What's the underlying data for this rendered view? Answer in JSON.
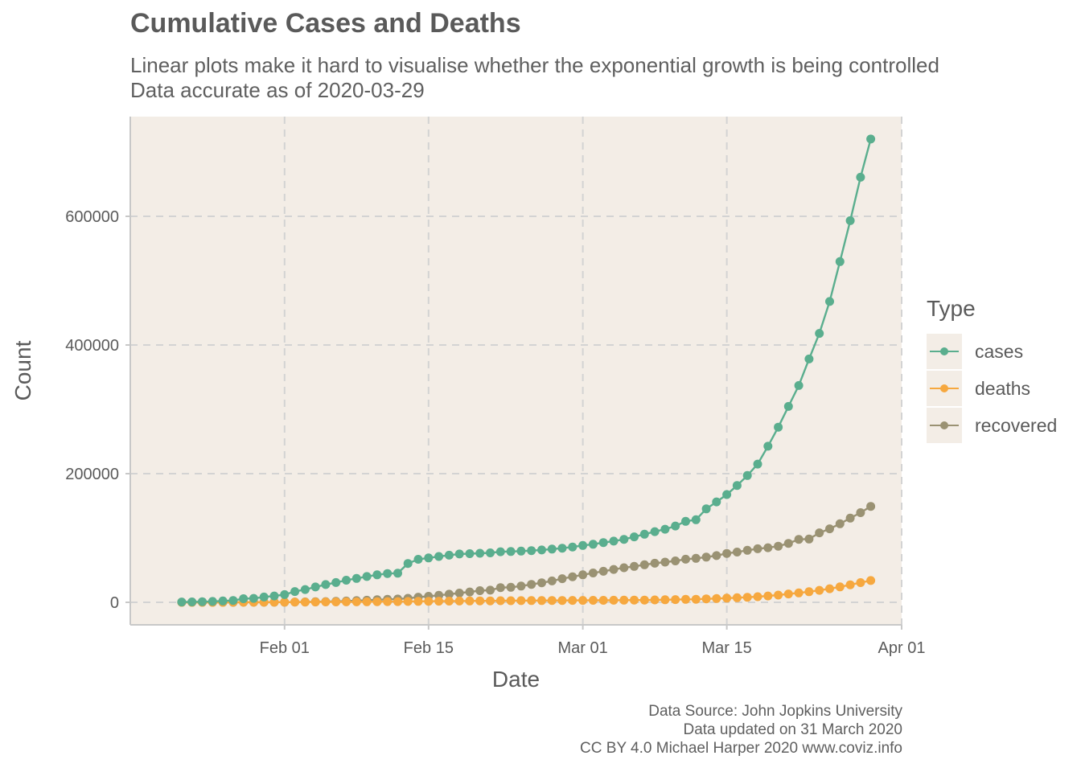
{
  "title": "Cumulative Cases and Deaths",
  "subtitle_lines": [
    "Linear plots make it hard to visualise whether the exponential growth is being controlled",
    "Data accurate as of 2020-03-29"
  ],
  "caption_lines": [
    "Data Source: John Jopkins University",
    "Data updated on 31 March 2020",
    "CC BY 4.0 Michael Harper 2020 www.coviz.info"
  ],
  "colors": {
    "panel_bg": "#f3ede6",
    "grid": "#d3d3d3",
    "cases": "#5aae8e",
    "deaths": "#f6a83f",
    "recovered": "#9a9273"
  },
  "chart_data": {
    "type": "line",
    "title": "Cumulative Cases and Deaths",
    "xlabel": "Date",
    "ylabel": "Count",
    "x_start_date": "2020-01-22",
    "x_end_date": "2020-03-29",
    "xlim": [
      "2020-01-17",
      "2020-04-01"
    ],
    "ylim": [
      -35000,
      755000
    ],
    "x_ticks": [
      "2020-02-01",
      "2020-02-15",
      "2020-03-01",
      "2020-03-15",
      "2020-04-01"
    ],
    "x_tick_labels": [
      "Feb 01",
      "Feb 15",
      "Mar 01",
      "Mar 15",
      "Apr 01"
    ],
    "y_ticks": [
      0,
      200000,
      400000,
      600000
    ],
    "y_tick_labels": [
      "0",
      "200000",
      "400000",
      "600000"
    ],
    "grid": true,
    "legend_title": "Type",
    "legend_position": "right",
    "series": [
      {
        "name": "cases",
        "values": [
          555,
          654,
          941,
          1434,
          2118,
          2927,
          5578,
          6166,
          8234,
          9927,
          12038,
          16787,
          19881,
          23892,
          27635,
          30794,
          34391,
          37120,
          40150,
          42762,
          44802,
          45221,
          60368,
          66885,
          69030,
          71224,
          73258,
          75136,
          75639,
          76197,
          76823,
          78579,
          78965,
          79568,
          80413,
          81395,
          82754,
          84120,
          86011,
          88369,
          90306,
          92840,
          95120,
          97886,
          101801,
          105847,
          109821,
          113590,
          118620,
          125875,
          128352,
          145205,
          156101,
          167454,
          181574,
          197102,
          214821,
          242570,
          272208,
          304507,
          336953,
          378235,
          418045,
          467653,
          529591,
          593291,
          660706,
          720117
        ]
      },
      {
        "name": "deaths",
        "values": [
          17,
          18,
          26,
          42,
          56,
          82,
          131,
          133,
          171,
          213,
          259,
          362,
          426,
          492,
          564,
          634,
          719,
          806,
          906,
          1013,
          1113,
          1118,
          1371,
          1523,
          1666,
          1770,
          1868,
          2007,
          2122,
          2247,
          2251,
          2458,
          2469,
          2629,
          2708,
          2770,
          2814,
          2872,
          2941,
          2996,
          3085,
          3160,
          3254,
          3348,
          3460,
          3558,
          3802,
          3988,
          4262,
          4615,
          4720,
          5404,
          5819,
          6440,
          7126,
          7905,
          8733,
          9867,
          11299,
          12973,
          14651,
          16505,
          18625,
          21181,
          23970,
          27198,
          30652,
          33925
        ]
      },
      {
        "name": "recovered",
        "values": [
          28,
          30,
          36,
          39,
          52,
          61,
          107,
          126,
          143,
          222,
          284,
          472,
          623,
          852,
          1124,
          1487,
          2011,
          2616,
          3244,
          3946,
          4683,
          5150,
          6295,
          8058,
          9395,
          10865,
          12583,
          14352,
          16121,
          18177,
          18890,
          22886,
          23394,
          25227,
          27905,
          30384,
          33277,
          36711,
          39782,
          42716,
          45602,
          48228,
          51170,
          53796,
          55865,
          58358,
          60694,
          62494,
          64404,
          67003,
          68324,
          70251,
          72624,
          76034,
          78088,
          80840,
          83207,
          84854,
          87256,
          91676,
          97882,
          98351,
          108000,
          114218,
          122150,
          130915,
          139415,
          149082
        ]
      }
    ]
  }
}
